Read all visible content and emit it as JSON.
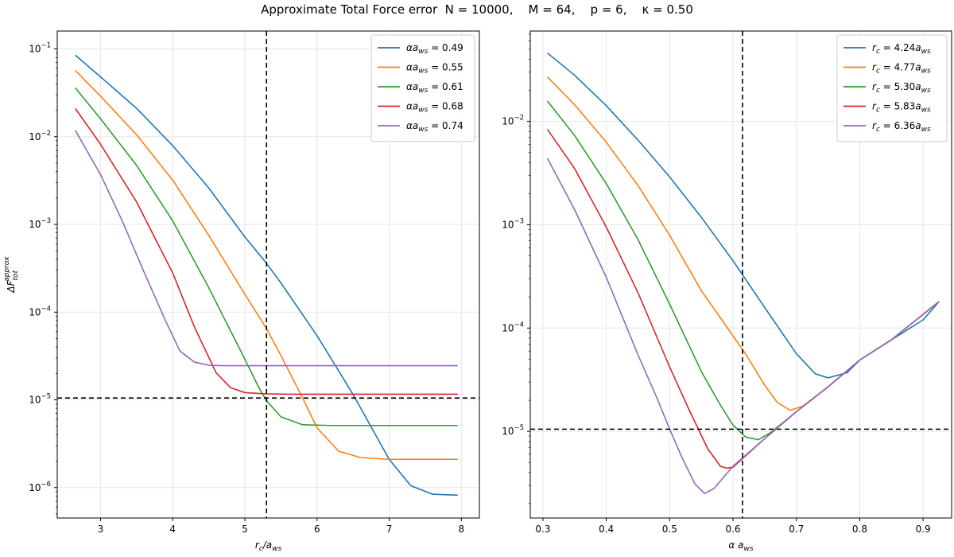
{
  "figure": {
    "title": "Approximate Total Force error  N = 10000,    M = 64,    p = 6,    κ = 0.50"
  },
  "colors": {
    "c0": "#1f77b4",
    "c1": "#ff7f0e",
    "c2": "#2ca02c",
    "c3": "#d62728",
    "c4": "#9467bd",
    "grid": "#e6e6e6",
    "refline": "#000000"
  },
  "chart_data": [
    {
      "type": "line",
      "yscale": "log",
      "xlabel": "r_c/a_ws",
      "ylabel": "ΔF_tot^approx",
      "xlim": [
        2.4,
        8.25
      ],
      "ylim": [
        4.5e-07,
        0.16
      ],
      "xticks": [
        3,
        4,
        5,
        6,
        7,
        8
      ],
      "yticks": [
        1e-06,
        1e-05,
        0.0001,
        0.001,
        0.01,
        0.1
      ],
      "grid": true,
      "legend_position": "top-right",
      "vline_x": 5.3,
      "hline_y": 1.05e-05,
      "series": [
        {
          "name": "αa_ws = 0.49",
          "label_html": "<tspan font-style='italic'>αa</tspan><tspan font-style='italic' font-size='9' dy='3'>ws</tspan><tspan dy='-3'> = 0.49</tspan>",
          "x": [
            2.65,
            3.0,
            3.5,
            4.0,
            4.5,
            5.0,
            5.3,
            5.5,
            6.0,
            6.5,
            7.0,
            7.3,
            7.6,
            7.95
          ],
          "y": [
            0.085,
            0.048,
            0.021,
            0.0079,
            0.0026,
            0.00072,
            0.00036,
            0.000215,
            5.4e-05,
            1.15e-05,
            2.1e-06,
            1.05e-06,
            8.4e-07,
            8.2e-07
          ]
        },
        {
          "name": "αa_ws = 0.55",
          "x": [
            2.65,
            3.0,
            3.5,
            4.0,
            4.5,
            5.0,
            5.3,
            5.5,
            5.8,
            6.0,
            6.3,
            6.6,
            7.0,
            7.95
          ],
          "y": [
            0.057,
            0.029,
            0.0105,
            0.0032,
            0.00075,
            0.00016,
            6.5e-05,
            3.2e-05,
            1.05e-05,
            4.8e-06,
            2.6e-06,
            2.2e-06,
            2.1e-06,
            2.1e-06
          ]
        },
        {
          "name": "αa_ws = 0.61",
          "x": [
            2.65,
            3.0,
            3.5,
            4.0,
            4.5,
            5.0,
            5.2,
            5.3,
            5.5,
            5.8,
            6.2,
            7.95
          ],
          "y": [
            0.036,
            0.016,
            0.0047,
            0.0011,
            0.00019,
            2.9e-05,
            1.35e-05,
            9.8e-06,
            6.4e-06,
            5.2e-06,
            5.1e-06,
            5.1e-06
          ]
        },
        {
          "name": "αa_ws = 0.68",
          "x": [
            2.65,
            3.0,
            3.5,
            4.0,
            4.3,
            4.6,
            4.8,
            5.0,
            5.3,
            5.6,
            7.95
          ],
          "y": [
            0.021,
            0.0082,
            0.0018,
            0.00028,
            6.8e-05,
            2.05e-05,
            1.38e-05,
            1.21e-05,
            1.17e-05,
            1.16e-05,
            1.16e-05
          ]
        },
        {
          "name": "αa_ws = 0.74",
          "x": [
            2.65,
            3.0,
            3.3,
            3.6,
            3.9,
            4.1,
            4.3,
            4.5,
            4.7,
            5.0,
            7.95
          ],
          "y": [
            0.0118,
            0.0037,
            0.0011,
            0.00029,
            8e-05,
            3.6e-05,
            2.7e-05,
            2.48e-05,
            2.45e-05,
            2.45e-05,
            2.45e-05
          ]
        }
      ]
    },
    {
      "type": "line",
      "yscale": "log",
      "xlabel": "α a_ws",
      "ylabel": "",
      "xlim": [
        0.28,
        0.945
      ],
      "ylim": [
        1.45e-06,
        0.075
      ],
      "xticks": [
        0.3,
        0.4,
        0.5,
        0.6,
        0.7,
        0.8,
        0.9
      ],
      "yticks": [
        1e-05,
        0.0001,
        0.001,
        0.01
      ],
      "grid": true,
      "legend_position": "top-right",
      "vline_x": 0.615,
      "hline_y": 1.05e-05,
      "series": [
        {
          "name": "r_c = 4.24a_ws",
          "x": [
            0.307,
            0.35,
            0.4,
            0.45,
            0.5,
            0.55,
            0.6,
            0.65,
            0.7,
            0.73,
            0.75,
            0.78,
            0.8,
            0.85,
            0.9,
            0.925
          ],
          "y": [
            0.046,
            0.028,
            0.0142,
            0.0066,
            0.0029,
            0.00118,
            0.000448,
            0.000158,
            5.65e-05,
            3.6e-05,
            3.3e-05,
            3.7e-05,
            4.9e-05,
            7.7e-05,
            0.00012,
            0.00018
          ]
        },
        {
          "name": "r_c = 4.77a_ws",
          "x": [
            0.307,
            0.35,
            0.4,
            0.45,
            0.5,
            0.55,
            0.6,
            0.62,
            0.65,
            0.67,
            0.69,
            0.71,
            0.75,
            0.8,
            0.85,
            0.925
          ],
          "y": [
            0.027,
            0.0145,
            0.0063,
            0.0024,
            0.00079,
            0.00023,
            8.4e-05,
            5.6e-05,
            2.8e-05,
            1.9e-05,
            1.6e-05,
            1.75e-05,
            2.7e-05,
            4.9e-05,
            7.7e-05,
            0.00018
          ]
        },
        {
          "name": "r_c = 5.30a_ws",
          "x": [
            0.307,
            0.35,
            0.4,
            0.45,
            0.5,
            0.55,
            0.58,
            0.6,
            0.62,
            0.64,
            0.66,
            0.7,
            0.75,
            0.8,
            0.85,
            0.925
          ],
          "y": [
            0.0158,
            0.0073,
            0.0025,
            0.00072,
            0.00017,
            3.8e-05,
            1.8e-05,
            1.15e-05,
            8.8e-06,
            8.3e-06,
            9.8e-06,
            1.55e-05,
            2.7e-05,
            4.9e-05,
            7.7e-05,
            0.00018
          ]
        },
        {
          "name": "r_c = 5.83a_ws",
          "x": [
            0.307,
            0.35,
            0.4,
            0.45,
            0.5,
            0.53,
            0.56,
            0.58,
            0.59,
            0.6,
            0.62,
            0.65,
            0.7,
            0.75,
            0.8,
            0.85,
            0.925
          ],
          "y": [
            0.0084,
            0.0035,
            0.00095,
            0.00022,
            4.2e-05,
            1.65e-05,
            6.8e-06,
            4.6e-06,
            4.4e-06,
            4.5e-06,
            5.8e-06,
            8.5e-06,
            1.55e-05,
            2.7e-05,
            4.9e-05,
            7.7e-05,
            0.00018
          ]
        },
        {
          "name": "r_c = 6.36a_ws",
          "x": [
            0.307,
            0.35,
            0.4,
            0.45,
            0.48,
            0.5,
            0.52,
            0.54,
            0.555,
            0.57,
            0.6,
            0.65,
            0.7,
            0.75,
            0.8,
            0.85,
            0.925
          ],
          "y": [
            0.0044,
            0.0014,
            0.00031,
            5.5e-05,
            2.1e-05,
            1.05e-05,
            5.5e-06,
            3.1e-06,
            2.5e-06,
            2.8e-06,
            4.6e-06,
            8.5e-06,
            1.55e-05,
            2.7e-05,
            4.9e-05,
            7.7e-05,
            0.00018
          ]
        }
      ]
    }
  ]
}
